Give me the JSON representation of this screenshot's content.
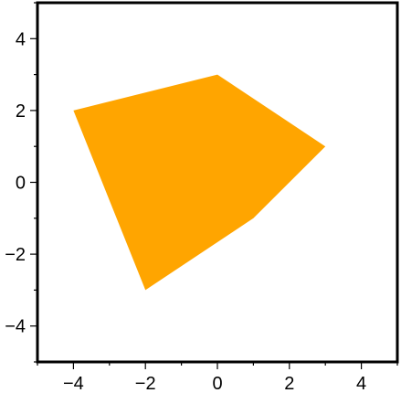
{
  "chart_data": {
    "type": "area",
    "xlim": [
      -5,
      5
    ],
    "ylim": [
      -5,
      5
    ],
    "x_ticks": [
      -4,
      -2,
      0,
      2,
      4
    ],
    "x_tick_labels": [
      "−4",
      "−2",
      "0",
      "2",
      "4"
    ],
    "y_ticks": [
      -4,
      -2,
      0,
      2,
      4
    ],
    "y_tick_labels": [
      "−4",
      "−2",
      "0",
      "2",
      "4"
    ],
    "minor_tick_step": 1,
    "grid": false,
    "series": [
      {
        "fill_color": "#ffa500",
        "points": [
          {
            "x": -4,
            "y": 2
          },
          {
            "x": 0,
            "y": 3
          },
          {
            "x": 3,
            "y": 1
          },
          {
            "x": 1,
            "y": -1
          },
          {
            "x": -2,
            "y": -3
          }
        ]
      }
    ]
  }
}
